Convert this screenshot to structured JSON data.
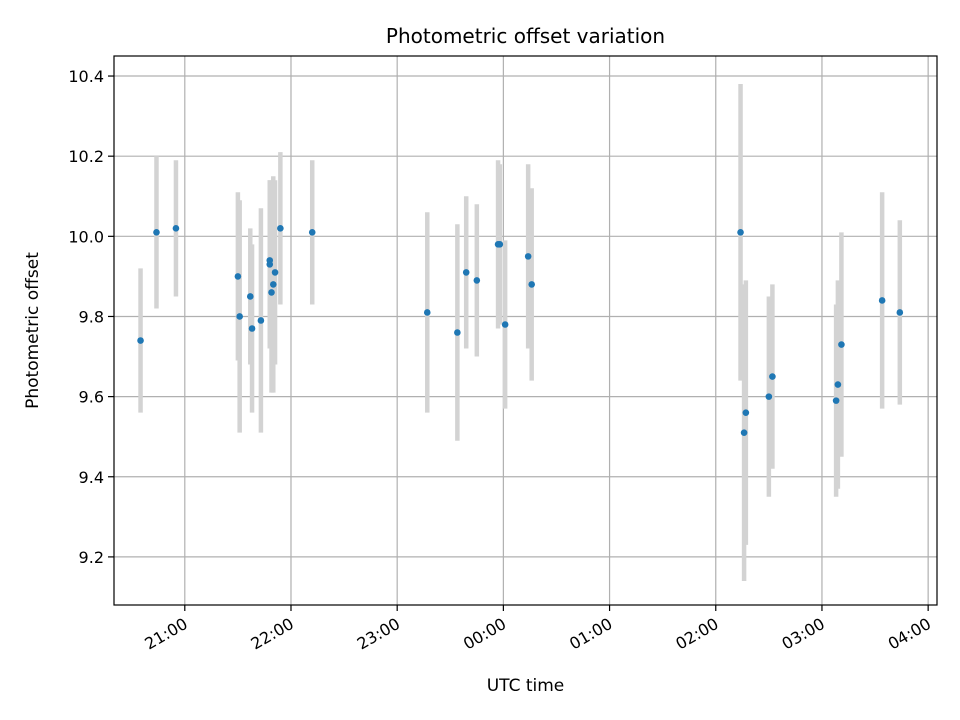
{
  "chart_data": {
    "type": "scatter",
    "title": "Photometric offset variation",
    "xlabel": "UTC time",
    "ylabel": "Photometric offset",
    "x_unit": "UTC clock time (HH:MM), starting evening, continuing past midnight",
    "xlim": [
      "20:20",
      "04:05"
    ],
    "ylim": [
      9.08,
      10.45
    ],
    "x_ticks": [
      "21:00",
      "22:00",
      "23:00",
      "00:00",
      "01:00",
      "02:00",
      "03:00",
      "04:00"
    ],
    "y_ticks": [
      9.2,
      9.4,
      9.6,
      9.8,
      10.0,
      10.2,
      10.4
    ],
    "y_tick_labels": [
      "9.2",
      "9.4",
      "9.6",
      "9.8",
      "10.0",
      "10.2",
      "10.4"
    ],
    "grid": true,
    "x_tick_rotation": 30,
    "colors": {
      "marker": "#1f77b4",
      "errorbar": "#d3d3d3",
      "grid": "#b0b0b0",
      "axis": "#000000"
    },
    "series": [
      {
        "points": [
          {
            "t": "20:35",
            "y": 9.74,
            "err": 0.18
          },
          {
            "t": "20:44",
            "y": 10.01,
            "err": 0.19
          },
          {
            "t": "20:55",
            "y": 10.02,
            "err": 0.17
          },
          {
            "t": "21:30",
            "y": 9.9,
            "err": 0.21
          },
          {
            "t": "21:31",
            "y": 9.8,
            "err": 0.29
          },
          {
            "t": "21:37",
            "y": 9.85,
            "err": 0.17
          },
          {
            "t": "21:38",
            "y": 9.77,
            "err": 0.21
          },
          {
            "t": "21:43",
            "y": 9.79,
            "err": 0.28
          },
          {
            "t": "21:48",
            "y": 9.94,
            "err": 0.2
          },
          {
            "t": "21:48",
            "y": 9.93,
            "err": 0.21
          },
          {
            "t": "21:49",
            "y": 9.86,
            "err": 0.25
          },
          {
            "t": "21:50",
            "y": 9.88,
            "err": 0.27
          },
          {
            "t": "21:51",
            "y": 9.91,
            "err": 0.23
          },
          {
            "t": "21:54",
            "y": 10.02,
            "err": 0.19
          },
          {
            "t": "22:12",
            "y": 10.01,
            "err": 0.18
          },
          {
            "t": "23:17",
            "y": 9.81,
            "err": 0.25
          },
          {
            "t": "23:34",
            "y": 9.76,
            "err": 0.27
          },
          {
            "t": "23:39",
            "y": 9.91,
            "err": 0.19
          },
          {
            "t": "23:45",
            "y": 9.89,
            "err": 0.19
          },
          {
            "t": "23:57",
            "y": 9.98,
            "err": 0.21
          },
          {
            "t": "23:58",
            "y": 9.98,
            "err": 0.2
          },
          {
            "t": "00:01",
            "y": 9.78,
            "err": 0.21
          },
          {
            "t": "00:14",
            "y": 9.95,
            "err": 0.23
          },
          {
            "t": "00:16",
            "y": 9.88,
            "err": 0.24
          },
          {
            "t": "02:14",
            "y": 10.01,
            "err": 0.37
          },
          {
            "t": "02:16",
            "y": 9.51,
            "err": 0.37
          },
          {
            "t": "02:17",
            "y": 9.56,
            "err": 0.33
          },
          {
            "t": "02:30",
            "y": 9.6,
            "err": 0.25
          },
          {
            "t": "02:32",
            "y": 9.65,
            "err": 0.23
          },
          {
            "t": "03:08",
            "y": 9.59,
            "err": 0.24
          },
          {
            "t": "03:09",
            "y": 9.63,
            "err": 0.26
          },
          {
            "t": "03:11",
            "y": 9.73,
            "err": 0.28
          },
          {
            "t": "03:34",
            "y": 9.84,
            "err": 0.27
          },
          {
            "t": "03:44",
            "y": 9.81,
            "err": 0.23
          }
        ]
      }
    ]
  }
}
